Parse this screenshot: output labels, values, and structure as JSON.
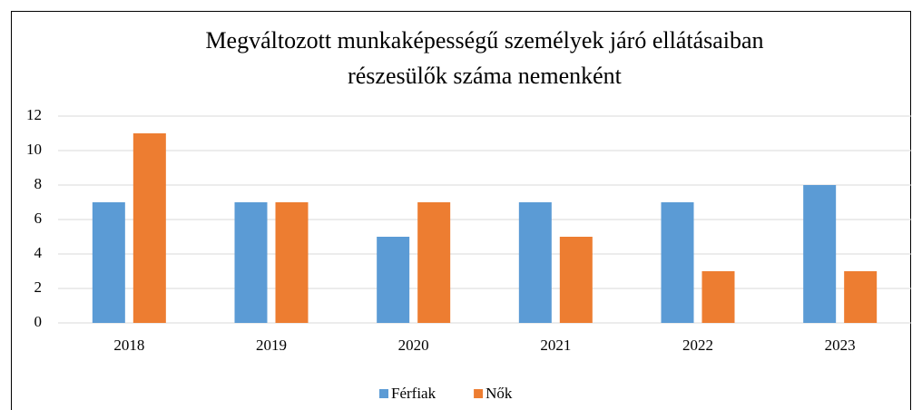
{
  "chart_data": {
    "type": "bar",
    "title": [
      "Megváltozott munkaképességű személyek járó ellátásaiban",
      "részesülők száma nemenként"
    ],
    "categories": [
      "2018",
      "2019",
      "2020",
      "2021",
      "2022",
      "2023"
    ],
    "series": [
      {
        "name": "Férfiak",
        "color": "#5b9bd5",
        "values": [
          7,
          7,
          5,
          7,
          7,
          8
        ]
      },
      {
        "name": "Nők",
        "color": "#ed7d31",
        "values": [
          11,
          7,
          7,
          5,
          3,
          3
        ]
      }
    ],
    "ylim": [
      0,
      12
    ],
    "yticks": [
      0,
      2,
      4,
      6,
      8,
      10,
      12
    ],
    "grid": true,
    "legend": "bottom"
  }
}
